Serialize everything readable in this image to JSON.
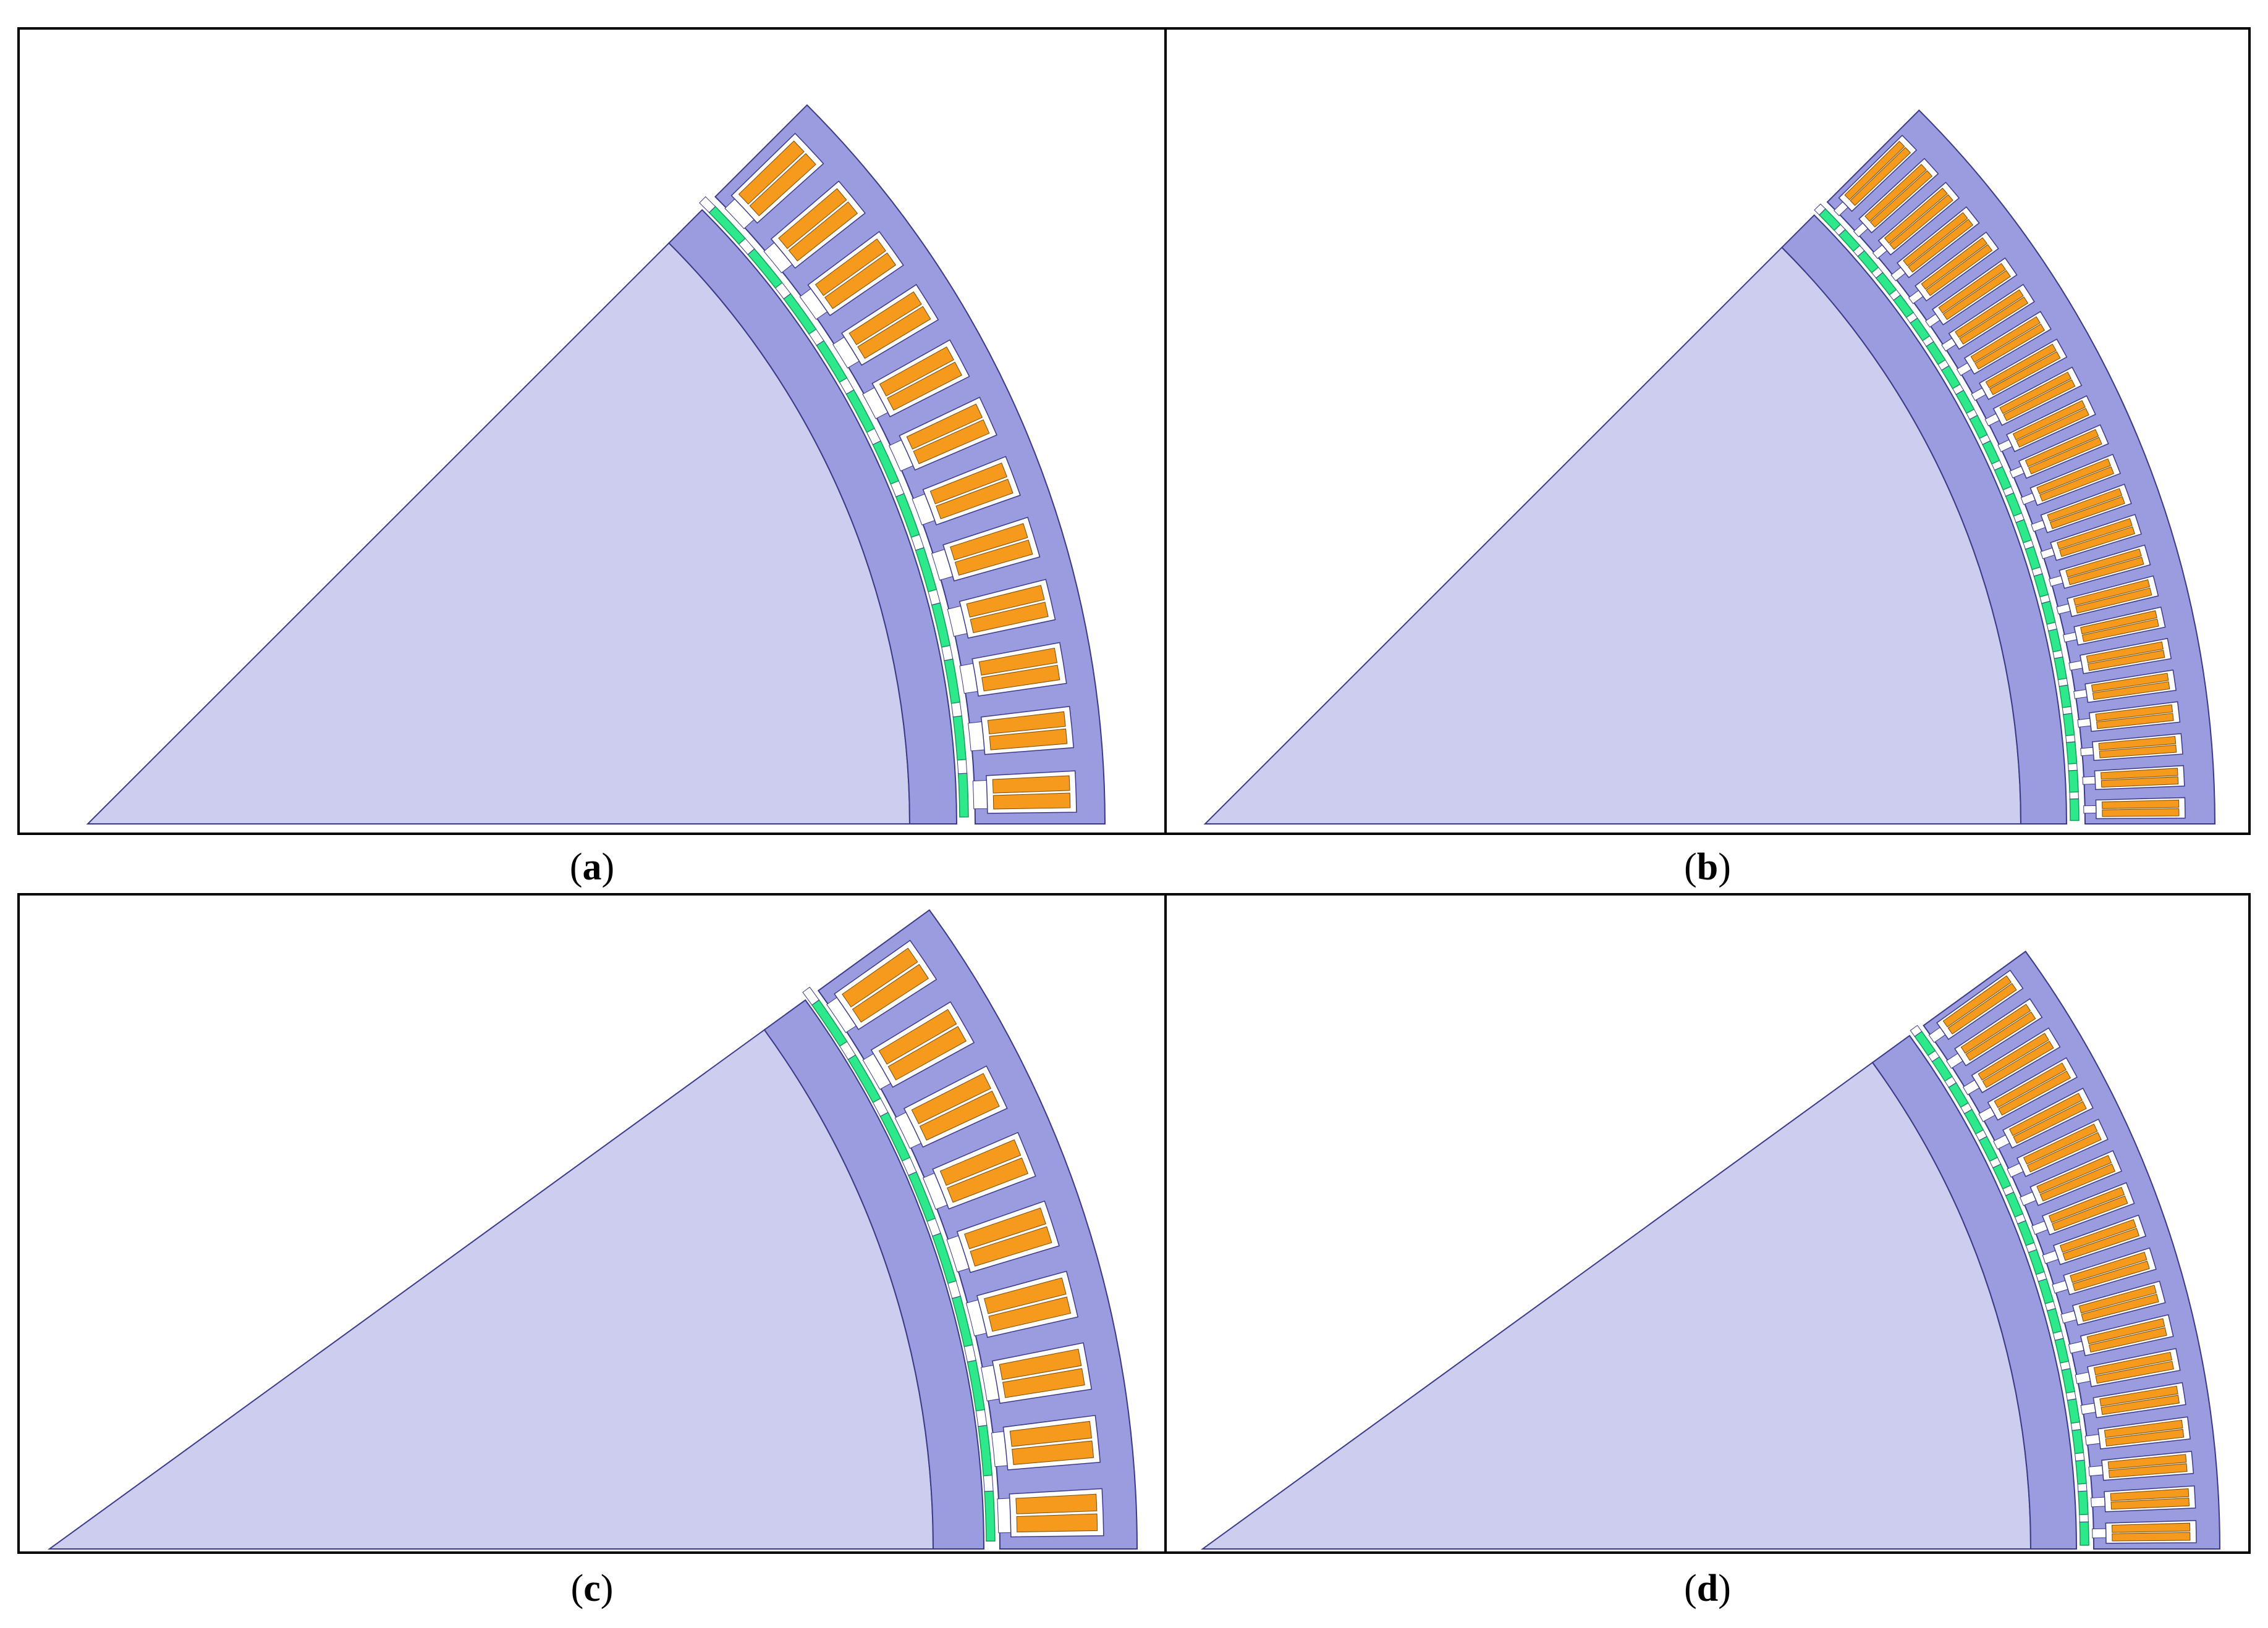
{
  "figure": {
    "panels": [
      {
        "id": "a",
        "label": "a",
        "slot_count": 12,
        "rotor_angle_deg": 45
      },
      {
        "id": "b",
        "label": "b",
        "slot_count": 24,
        "rotor_angle_deg": 45
      },
      {
        "id": "c",
        "label": "c",
        "slot_count": 9,
        "rotor_angle_deg": 36
      },
      {
        "id": "d",
        "label": "d",
        "slot_count": 18,
        "rotor_angle_deg": 36
      }
    ]
  },
  "colors": {
    "rotor_core": "#cdcdf0",
    "rotor_sleeve": "#9b9bdf",
    "stator_core": "#9b9bdf",
    "outline": "#3a3a8a",
    "magnet": "#2ee88c",
    "magnet_gap": "#ffffff",
    "slot_fill": "#ffffff",
    "coil": "#f59a1c",
    "coil_border": "#7a4a00",
    "frame": "#000000"
  }
}
